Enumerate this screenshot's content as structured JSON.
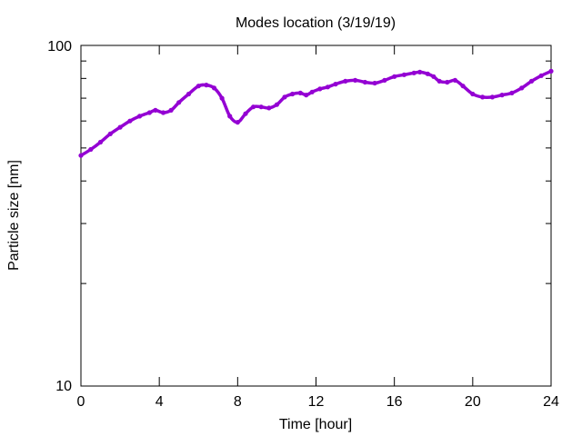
{
  "chart_data": {
    "type": "line",
    "title": "Modes location (3/19/19)",
    "xlabel": "Time [hour]",
    "ylabel": "Particle size [nm]",
    "xlim": [
      0,
      24
    ],
    "ylim": [
      10,
      100
    ],
    "yscale": "log",
    "x_ticks": [
      0,
      4,
      8,
      12,
      16,
      20,
      24
    ],
    "x_tick_labels": [
      "0",
      "4",
      "8",
      "12",
      "16",
      "20",
      "24"
    ],
    "y_tick_labels": [
      "10",
      "100"
    ],
    "grid": false,
    "legend": "none",
    "line_color": "#9400d3",
    "series": [
      {
        "x": [
          0,
          0.5,
          1,
          1.5,
          2,
          2.5,
          3,
          3.5,
          3.8,
          4.2,
          4.6,
          5,
          5.5,
          6,
          6.4,
          6.8,
          7.2,
          7.6,
          8,
          8.4,
          8.8,
          9.2,
          9.6,
          10,
          10.4,
          10.8,
          11.2,
          11.5,
          11.8,
          12.2,
          12.6,
          13,
          13.5,
          14,
          14.5,
          15,
          15.5,
          16,
          16.5,
          17,
          17.3,
          17.7,
          18,
          18.3,
          18.7,
          19.1,
          19.5,
          20,
          20.5,
          21,
          21.5,
          22,
          22.5,
          23,
          23.5,
          24
        ],
        "y": [
          47.5,
          49.5,
          52,
          55,
          57.5,
          60,
          62,
          63.5,
          64.5,
          63.5,
          64.5,
          68,
          72,
          76,
          76.5,
          75,
          70,
          62,
          59.5,
          63,
          66,
          66,
          65.5,
          67,
          70.5,
          72,
          72.5,
          71.5,
          73,
          74.5,
          75.5,
          77,
          78.5,
          79,
          78,
          77.5,
          79,
          81,
          82,
          83,
          83.5,
          82.5,
          81,
          78.5,
          78,
          79,
          76,
          72,
          70.5,
          70.5,
          71.5,
          72.5,
          75,
          78.5,
          81.5,
          84
        ]
      }
    ]
  }
}
